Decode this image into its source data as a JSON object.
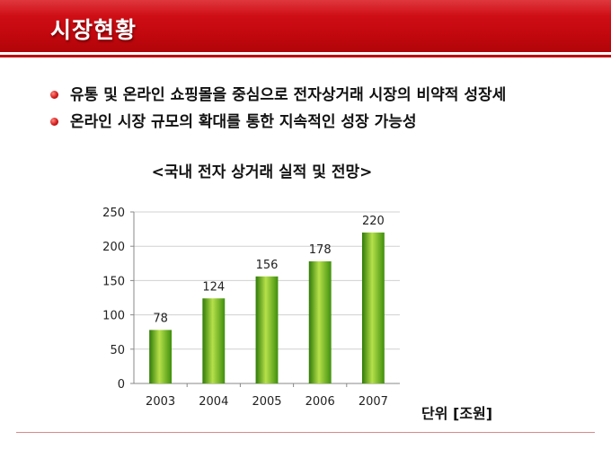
{
  "slide": {
    "title": "시장현황",
    "bullets": [
      "유통 및 온라인 쇼핑몰을 중심으로 전자상거래 시장의 비약적 성장세",
      "온라인 시장 규모의 확대를 통한 지속적인 성장 가능성"
    ],
    "unit_label": "단위 [조원]"
  },
  "colors": {
    "accent": "#c5080f",
    "bar_light": "#b6e04a",
    "bar_dark": "#2f7a08"
  },
  "chart_data": {
    "type": "bar",
    "title": "<국내 전자 상거래 실적 및 전망>",
    "categories": [
      "2003",
      "2004",
      "2005",
      "2006",
      "2007"
    ],
    "values": [
      78,
      124,
      156,
      178,
      220
    ],
    "ylim": [
      0,
      250
    ],
    "yticks": [
      0,
      50,
      100,
      150,
      200,
      250
    ],
    "grid": true,
    "xlabel": "",
    "ylabel": ""
  }
}
